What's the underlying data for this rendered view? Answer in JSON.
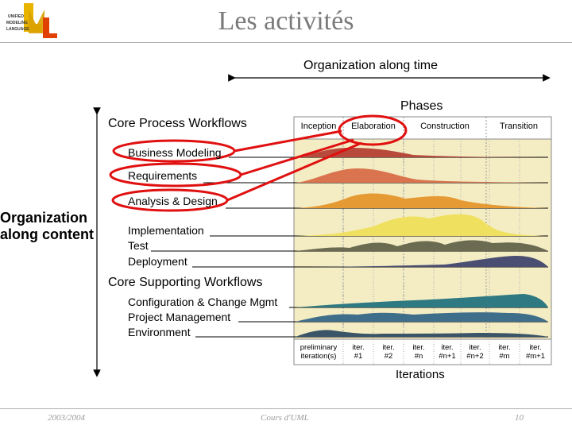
{
  "slide": {
    "title": "Les activités",
    "footer_date": "2003/2004",
    "footer_course": "Cours d'UML",
    "page_number": "10"
  },
  "logo": {
    "letters": "UML",
    "words": [
      "UNIFIED",
      "MODELING",
      "LANGUAGE"
    ],
    "colors": {
      "u": "#e8b400",
      "m": "#e8b400",
      "l": "#e04000"
    }
  },
  "diagram": {
    "time_axis_label": "Organization along time",
    "content_axis_label": [
      "Organization",
      "along content"
    ],
    "phases_label": "Phases",
    "phases": [
      "Inception",
      "Elaboration",
      "Construction",
      "Transition"
    ],
    "core_process_label": "Core Process Workflows",
    "core_process": [
      "Business Modeling",
      "Requirements",
      "Analysis & Design",
      "Implementation",
      "Test",
      "Deployment"
    ],
    "core_supporting_label": "Core Supporting Workflows",
    "core_supporting": [
      "Configuration & Change Mgmt",
      "Project Management",
      "Environment"
    ],
    "iterations_label": "Iterations",
    "iterations": [
      "preliminary\niteration(s)",
      "iter.\n#1",
      "iter.\n#2",
      "iter.\n#n",
      "iter.\n#n+1",
      "iter.\n#n+2",
      "iter.\n#m",
      "iter.\n#m+1"
    ],
    "colors": {
      "highlight": "#e01010",
      "grid_bg": "#f4edc4",
      "business_modeling": "#b84a3c",
      "requirements": "#d9744e",
      "analysis_design": "#e69a33",
      "implementation": "#f0e060",
      "test": "#6b6b52",
      "deployment": "#4a4e72",
      "configuration": "#2f7a82",
      "project_management": "#3f6e8a",
      "environment": "#3a5568"
    }
  }
}
